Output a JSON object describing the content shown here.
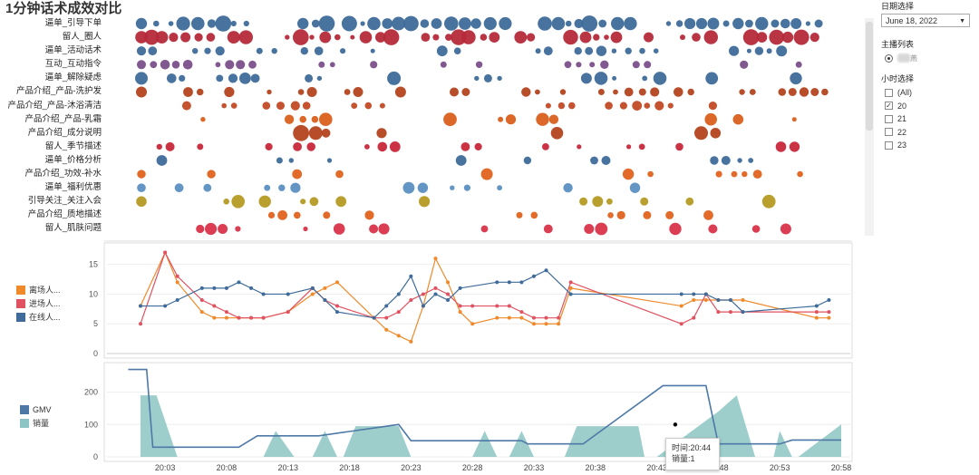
{
  "title": "1分钟话术成效对比",
  "colors": {
    "blue": "#3e6b99",
    "red": "#b52a3a",
    "gmv": "#4e79a7",
    "sales": "#8cc5c3",
    "orange": "#f0892a",
    "pink": "#e05260"
  },
  "filters": {
    "date_label": "日期选择",
    "date_value": "June 18, 2022",
    "anchor_label": "主播列表",
    "anchor_value": "燕",
    "hour_label": "小时选择",
    "hours": [
      {
        "label": "(All)",
        "checked": false
      },
      {
        "label": "20",
        "checked": true
      },
      {
        "label": "21",
        "checked": false
      },
      {
        "label": "22",
        "checked": false
      },
      {
        "label": "23",
        "checked": false
      }
    ]
  },
  "tooltip": {
    "time": "时间:20:44",
    "sales": "销量:1"
  },
  "chart_data": [
    {
      "type": "scatter",
      "title": "1分钟话术成效对比",
      "categories": [
        "逼单_引导下单",
        "留人_圈人",
        "逼单_活动话术",
        "互动_互动指令",
        "逼单_解除疑虑",
        "产品介绍_产品-洗护发",
        "产品介绍_产品-沐浴清洁",
        "产品介绍_产品-乳霜",
        "产品介绍_成分说明",
        "留人_季节描述",
        "逼单_价格分析",
        "产品介绍_功效-补水",
        "逼单_福利优惠",
        "引导关注_关注入会",
        "产品介绍_质地描述",
        "留人_肌肤问题"
      ],
      "category_colors": [
        "#3e6b99",
        "#b52a3a",
        "#3e6b99",
        "#7b4f8a",
        "#3e6b99",
        "#b4431e",
        "#c24a25",
        "#d9601c",
        "#b4431e",
        "#c8283a",
        "#3e6b99",
        "#e0631f",
        "#5b8fc2",
        "#b59a23",
        "#e0631f",
        "#d9344a"
      ],
      "x_range_minutes": [
        0,
        60
      ]
    },
    {
      "type": "line",
      "x": [
        "20:01",
        "20:02",
        "20:03",
        "20:04",
        "20:05",
        "20:06",
        "20:07",
        "20:08",
        "20:09",
        "20:10",
        "20:11",
        "20:12",
        "20:13",
        "20:14",
        "20:15",
        "20:16",
        "20:17",
        "20:18",
        "20:19",
        "20:20",
        "20:21",
        "20:22",
        "20:23",
        "20:24",
        "20:25",
        "20:26",
        "20:27",
        "20:28",
        "20:29",
        "20:30",
        "20:31",
        "20:32",
        "20:33",
        "20:34",
        "20:35",
        "20:36",
        "20:37",
        "20:38",
        "20:39",
        "20:40",
        "20:41",
        "20:42",
        "20:43",
        "20:44",
        "20:45",
        "20:46",
        "20:47",
        "20:48",
        "20:49",
        "20:50",
        "20:51",
        "20:52",
        "20:53",
        "20:54",
        "20:55",
        "20:56",
        "20:57",
        "20:58"
      ],
      "series": [
        {
          "name": "离场人...",
          "values": [
            8,
            null,
            17,
            12,
            null,
            7,
            6,
            6,
            6,
            6,
            6,
            null,
            7,
            null,
            10,
            11,
            12,
            null,
            null,
            6,
            4,
            3,
            2,
            8,
            16,
            12,
            7,
            5,
            null,
            6,
            6,
            6,
            5,
            5,
            5,
            11,
            null,
            null,
            null,
            null,
            null,
            null,
            null,
            null,
            8,
            9,
            9,
            9,
            9,
            9,
            null,
            null,
            null,
            null,
            null,
            6,
            6,
            null
          ],
          "color": "#f0892a"
        },
        {
          "name": "进场人...",
          "values": [
            5,
            null,
            17,
            13,
            null,
            9,
            8,
            7,
            6,
            6,
            6,
            null,
            7,
            null,
            11,
            9,
            8,
            null,
            null,
            6,
            6,
            7,
            9,
            10,
            11,
            10,
            8,
            8,
            null,
            8,
            8,
            7,
            6,
            6,
            6,
            12,
            null,
            null,
            null,
            null,
            null,
            null,
            null,
            null,
            5,
            6,
            10,
            7,
            7,
            7,
            null,
            null,
            null,
            null,
            null,
            7,
            7,
            null
          ],
          "color": "#e05260"
        },
        {
          "name": "在线人...",
          "values": [
            8,
            null,
            8,
            9,
            null,
            11,
            11,
            11,
            12,
            11,
            10,
            null,
            10,
            null,
            11,
            9,
            7,
            null,
            null,
            6,
            8,
            10,
            13,
            8,
            10,
            9,
            11,
            null,
            null,
            12,
            12,
            12,
            13,
            14,
            null,
            10,
            null,
            null,
            null,
            null,
            null,
            null,
            null,
            null,
            10,
            10,
            10,
            9,
            9,
            7,
            null,
            null,
            null,
            null,
            null,
            8,
            9,
            null
          ],
          "color": "#3e6b99"
        }
      ],
      "legend": [
        "离场人...",
        "进场人...",
        "在线人..."
      ],
      "yticks": [
        0,
        5,
        10,
        15
      ],
      "ylim": [
        0,
        18
      ]
    },
    {
      "type": "area",
      "xticks": [
        "20:03",
        "20:08",
        "20:13",
        "20:18",
        "20:23",
        "20:28",
        "20:33",
        "20:38",
        "20:43",
        "20:48",
        "20:53",
        "20:58"
      ],
      "series": [
        {
          "name": "GMV",
          "type": "line",
          "color": "#4e79a7"
        },
        {
          "name": "销量",
          "type": "area",
          "color": "#8cc5c3"
        }
      ],
      "yticks": [
        0,
        100,
        200
      ],
      "ylim": [
        0,
        280
      ]
    }
  ]
}
